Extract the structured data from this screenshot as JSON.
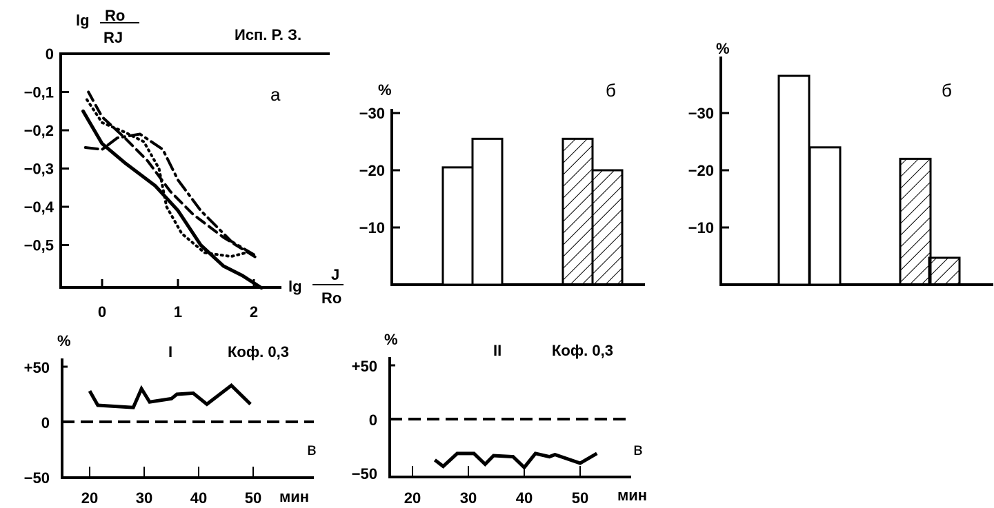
{
  "chart_data": [
    {
      "id": "a",
      "type": "line",
      "panel_letter": "а",
      "title": "Исп. Р. З.",
      "ylabel": {
        "prefix": "lg",
        "num": "Ro",
        "den": "RJ"
      },
      "xlabel": {
        "prefix": "lg",
        "num": "J",
        "den": "Ro"
      },
      "xlim": [
        -0.55,
        2.3
      ],
      "ylim": [
        -0.616,
        0
      ],
      "xticks": [
        {
          "v": 0,
          "label": "0"
        },
        {
          "v": 1,
          "label": "1"
        },
        {
          "v": 2,
          "label": "2"
        }
      ],
      "yticks": [
        {
          "v": 0,
          "label": "0"
        },
        {
          "v": -0.1,
          "label": "−0,1"
        },
        {
          "v": -0.2,
          "label": "−0,2"
        },
        {
          "v": -0.3,
          "label": "−0,3"
        },
        {
          "v": -0.4,
          "label": "−0,4"
        },
        {
          "v": -0.5,
          "label": "−0,5"
        }
      ],
      "series": [
        {
          "name": "solid",
          "style": "solid",
          "points": [
            [
              -0.25,
              -0.15
            ],
            [
              0,
              -0.235
            ],
            [
              0.3,
              -0.285
            ],
            [
              0.7,
              -0.345
            ],
            [
              1.0,
              -0.41
            ],
            [
              1.3,
              -0.5
            ],
            [
              1.6,
              -0.555
            ],
            [
              1.85,
              -0.58
            ],
            [
              2.1,
              -0.612
            ]
          ]
        },
        {
          "name": "dotted",
          "style": "dotted",
          "points": [
            [
              -0.2,
              -0.12
            ],
            [
              0,
              -0.18
            ],
            [
              0.3,
              -0.205
            ],
            [
              0.55,
              -0.23
            ],
            [
              0.75,
              -0.3
            ],
            [
              0.85,
              -0.4
            ],
            [
              1.05,
              -0.47
            ],
            [
              1.35,
              -0.52
            ],
            [
              1.7,
              -0.53
            ],
            [
              1.9,
              -0.52
            ]
          ]
        },
        {
          "name": "dashed",
          "style": "dashed",
          "points": [
            [
              -0.18,
              -0.1
            ],
            [
              0,
              -0.165
            ],
            [
              0.3,
              -0.22
            ],
            [
              0.6,
              -0.28
            ],
            [
              0.9,
              -0.36
            ],
            [
              1.2,
              -0.42
            ],
            [
              1.6,
              -0.48
            ],
            [
              2.05,
              -0.535
            ]
          ]
        },
        {
          "name": "dash-dot",
          "style": "dashdot",
          "points": [
            [
              -0.22,
              -0.245
            ],
            [
              0,
              -0.25
            ],
            [
              0.2,
              -0.22
            ],
            [
              0.5,
              -0.21
            ],
            [
              0.8,
              -0.25
            ],
            [
              1.0,
              -0.33
            ],
            [
              1.3,
              -0.41
            ],
            [
              1.7,
              -0.49
            ],
            [
              2.0,
              -0.525
            ]
          ]
        }
      ]
    },
    {
      "id": "b1",
      "type": "bar",
      "panel_letter": "б",
      "ylabel": "%",
      "ylim": [
        0,
        -37
      ],
      "yticks": [
        {
          "v": -10,
          "label": "−10"
        },
        {
          "v": -20,
          "label": "−20"
        },
        {
          "v": -30,
          "label": "−30"
        }
      ],
      "bars": [
        {
          "value": -20.5,
          "hatched": false
        },
        {
          "value": -25.5,
          "hatched": false
        },
        {
          "value": -25.5,
          "hatched": true
        },
        {
          "value": -20,
          "hatched": true
        }
      ]
    },
    {
      "id": "b2",
      "type": "bar",
      "panel_letter": "б",
      "ylabel": "%",
      "ylim": [
        0,
        -42
      ],
      "yticks": [
        {
          "v": -10,
          "label": "−10"
        },
        {
          "v": -20,
          "label": "−20"
        },
        {
          "v": -30,
          "label": "−30"
        }
      ],
      "bars": [
        {
          "value": -36.5,
          "hatched": false
        },
        {
          "value": -24,
          "hatched": false
        },
        {
          "value": -22,
          "hatched": true
        },
        {
          "value": -4.7,
          "hatched": true
        }
      ]
    },
    {
      "id": "v1",
      "type": "line",
      "panel_letter": "в",
      "roman": "I",
      "title": "Коф. 0,3",
      "ylabel": "%",
      "xlabel": "мин",
      "xlim": [
        15,
        55
      ],
      "ylim": [
        -50,
        50
      ],
      "xticks": [
        {
          "v": 20,
          "label": "20"
        },
        {
          "v": 30,
          "label": "30"
        },
        {
          "v": 40,
          "label": "40"
        },
        {
          "v": 50,
          "label": "50"
        }
      ],
      "yticks": [
        {
          "v": 50,
          "label": "+50"
        },
        {
          "v": 0,
          "label": "0"
        },
        {
          "v": -50,
          "label": "−50"
        }
      ],
      "points": [
        [
          20,
          28
        ],
        [
          21.5,
          15
        ],
        [
          28,
          13
        ],
        [
          29.5,
          30
        ],
        [
          31,
          18
        ],
        [
          35,
          21
        ],
        [
          36,
          25
        ],
        [
          39,
          26
        ],
        [
          41.5,
          16
        ],
        [
          46,
          33
        ],
        [
          49.5,
          16
        ]
      ]
    },
    {
      "id": "v2",
      "type": "line",
      "panel_letter": "в",
      "roman": "II",
      "title": "Коф. 0,3",
      "ylabel": "%",
      "xlabel": "мин",
      "xlim": [
        16,
        56
      ],
      "ylim": [
        -50,
        50
      ],
      "xticks": [
        {
          "v": 20,
          "label": "20"
        },
        {
          "v": 30,
          "label": "30"
        },
        {
          "v": 40,
          "label": "40"
        },
        {
          "v": 50,
          "label": "50"
        }
      ],
      "yticks": [
        {
          "v": 50,
          "label": "+50"
        },
        {
          "v": 0,
          "label": "0"
        },
        {
          "v": -50,
          "label": "−50"
        }
      ],
      "points": [
        [
          24,
          -38
        ],
        [
          25.5,
          -44
        ],
        [
          28,
          -32
        ],
        [
          31,
          -32
        ],
        [
          33,
          -42
        ],
        [
          34.5,
          -34
        ],
        [
          38,
          -35
        ],
        [
          40,
          -45
        ],
        [
          42,
          -32
        ],
        [
          44.5,
          -35
        ],
        [
          45.5,
          -33
        ],
        [
          50,
          -41
        ],
        [
          53,
          -32
        ]
      ]
    }
  ]
}
